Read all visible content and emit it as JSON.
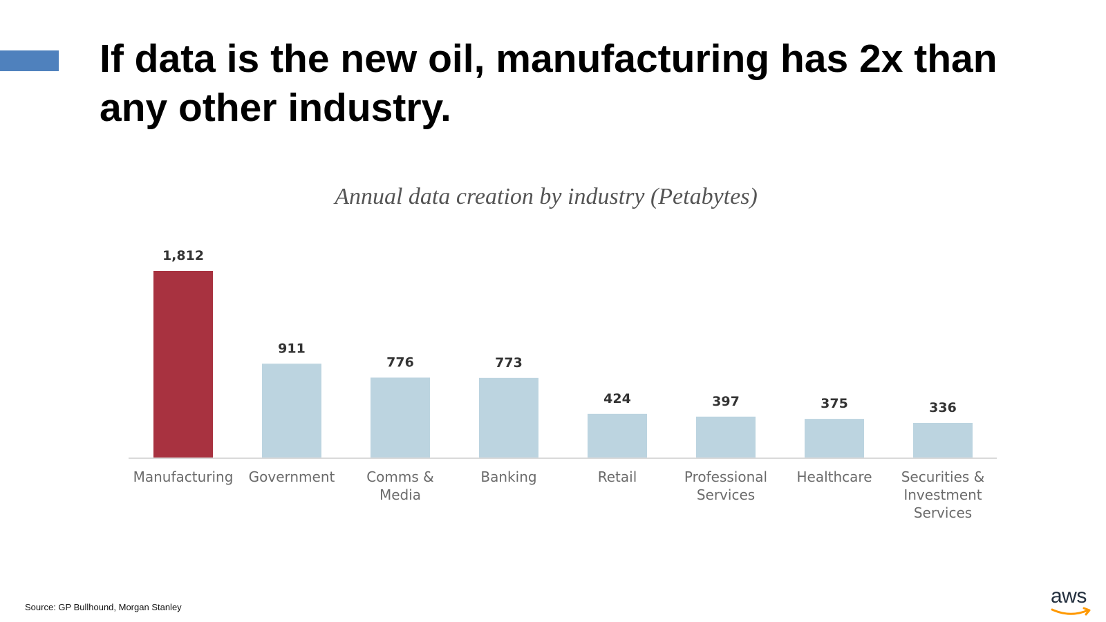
{
  "slide": {
    "title": "If data is the new oil, manufacturing has 2x than any other industry.",
    "source": "Source: GP Bullhound, Morgan Stanley",
    "logo_text": "aws",
    "accent_color": "#4f81bd"
  },
  "chart_data": {
    "type": "bar",
    "title": "Annual data creation by industry (Petabytes)",
    "categories": [
      [
        "Manufacturing"
      ],
      [
        "Government"
      ],
      [
        "Comms &",
        "Media"
      ],
      [
        "Banking"
      ],
      [
        "Retail"
      ],
      [
        "Professional",
        "Services"
      ],
      [
        "Healthcare"
      ],
      [
        "Securities &",
        "Investment",
        "Services"
      ]
    ],
    "values": [
      1812,
      911,
      776,
      773,
      424,
      397,
      375,
      336
    ],
    "value_labels": [
      "1,812",
      "911",
      "776",
      "773",
      "424",
      "397",
      "375",
      "336"
    ],
    "highlight_color": "#a83240",
    "bar_color": "#bcd4e0",
    "axis_color": "#d9d9d9",
    "grid": false,
    "legend": "none"
  }
}
